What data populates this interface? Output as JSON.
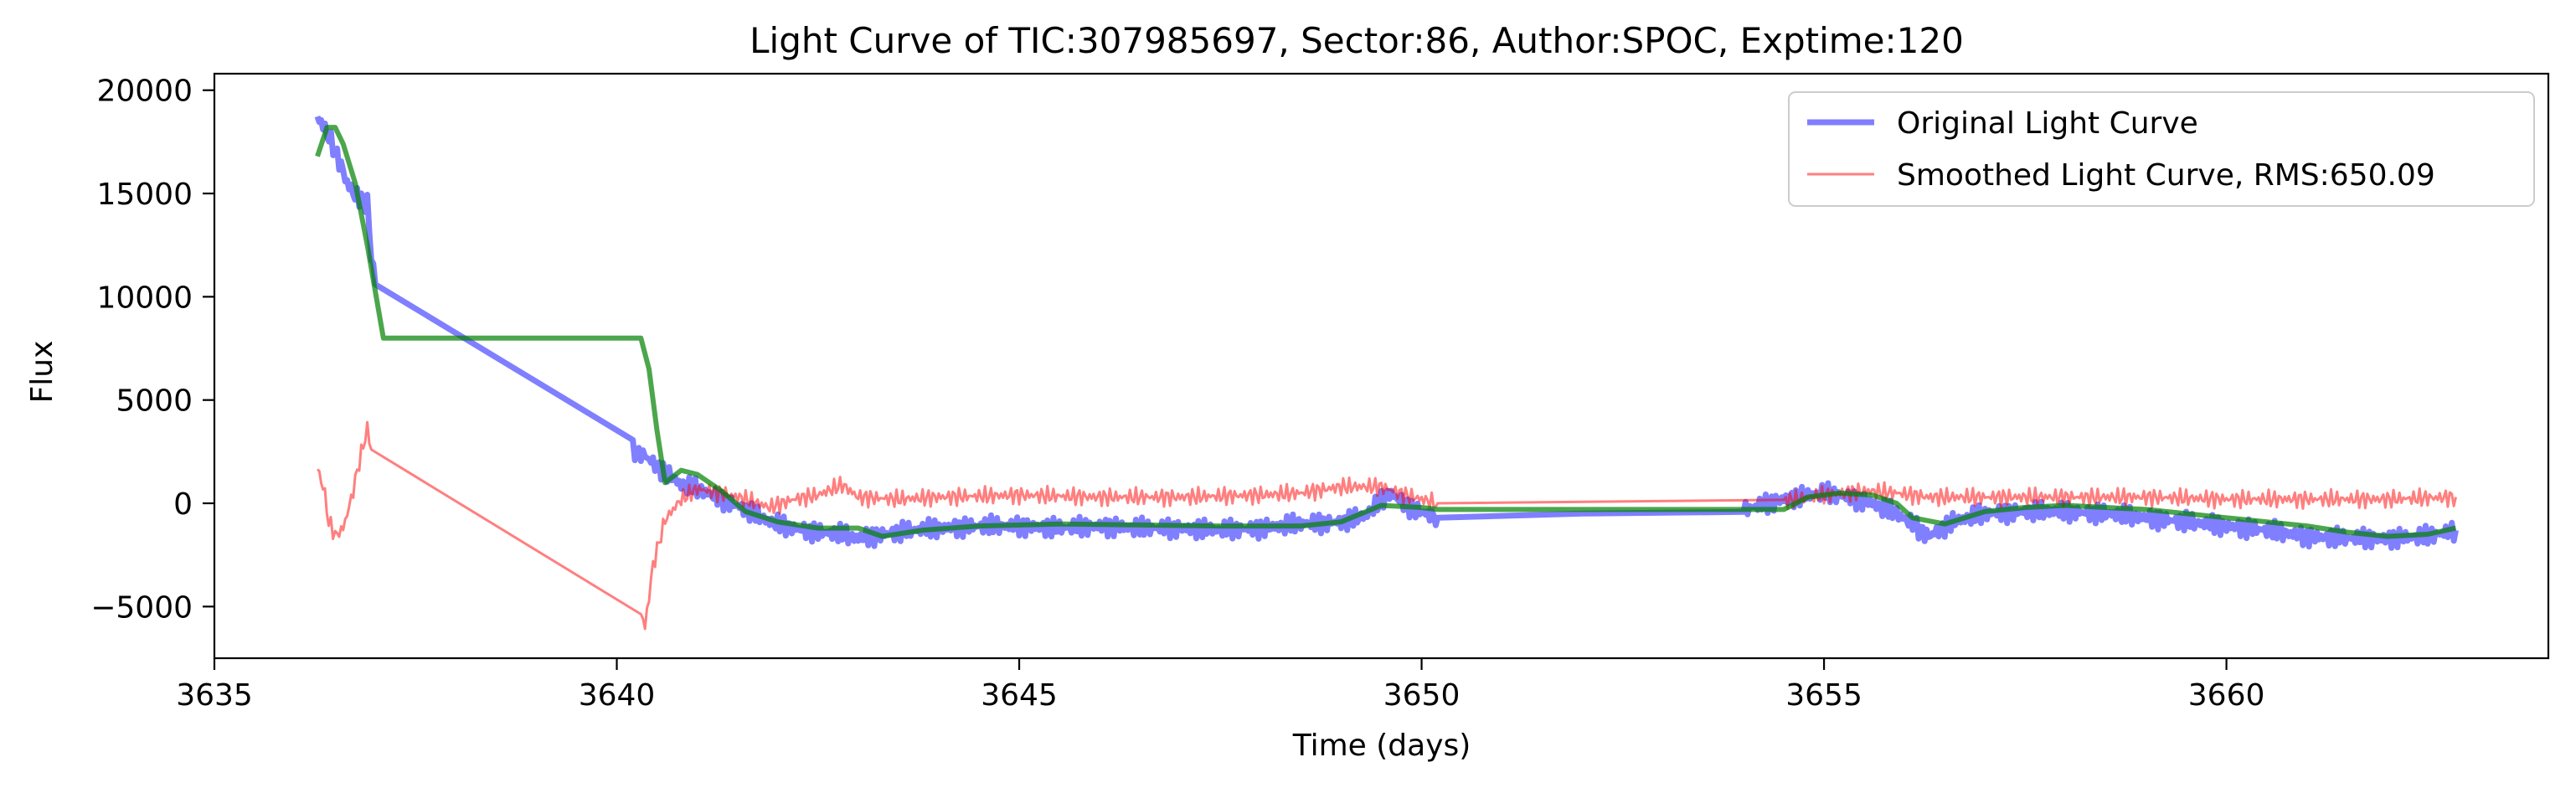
{
  "chart_data": {
    "type": "line",
    "title": "Light Curve of TIC:307985697, Sector:86, Author:SPOC, Exptime:120",
    "xlabel": "Time (days)",
    "ylabel": "Flux",
    "xlim": [
      3635,
      3664
    ],
    "ylim": [
      -7500,
      20800
    ],
    "xticks": [
      3635,
      3640,
      3645,
      3650,
      3655,
      3660
    ],
    "xtick_labels": [
      "3635",
      "3640",
      "3645",
      "3650",
      "3655",
      "3660"
    ],
    "yticks": [
      -5000,
      0,
      5000,
      10000,
      15000,
      20000
    ],
    "ytick_labels": [
      "−5000",
      "0",
      "5000",
      "10000",
      "15000",
      "20000"
    ],
    "grid": false,
    "legend_position": "top-right",
    "series": [
      {
        "name": "Original Light Curve",
        "color": "#0000ff",
        "opacity": 0.5,
        "x": [
          3636.28,
          3636.35,
          3636.45,
          3636.55,
          3636.65,
          3636.72,
          3636.8,
          3636.9,
          3636.95,
          3637.0,
          3640.2,
          3640.35,
          3640.5,
          3640.8,
          3641.0,
          3641.3,
          3641.6,
          3641.9,
          3642.2,
          3642.5,
          3642.8,
          3643.0,
          3643.3,
          3643.7,
          3644.0,
          3644.5,
          3645.0,
          3645.5,
          3646.0,
          3646.5,
          3647.0,
          3647.5,
          3648.0,
          3648.5,
          3649.0,
          3649.3,
          3649.6,
          3649.9,
          3650.2,
          3652.0,
          3654.0,
          3654.5,
          3655.0,
          3655.3,
          3655.6,
          3655.9,
          3656.1,
          3656.3,
          3656.6,
          3657.0,
          3657.5,
          3658.0,
          3658.5,
          3659.0,
          3659.5,
          3660.0,
          3660.5,
          3661.0,
          3661.5,
          3662.0,
          3662.5,
          3662.85
        ],
        "y": [
          18800,
          18300,
          17500,
          16600,
          15500,
          15000,
          14800,
          14500,
          12000,
          10600,
          2600,
          2300,
          1800,
          900,
          700,
          200,
          -300,
          -900,
          -1200,
          -1400,
          -1500,
          -1700,
          -1500,
          -1300,
          -1200,
          -1100,
          -1100,
          -1200,
          -1100,
          -1200,
          -1200,
          -1300,
          -1200,
          -1000,
          -900,
          -600,
          500,
          -300,
          -700,
          -500,
          -300,
          200,
          500,
          300,
          0,
          -500,
          -1000,
          -1600,
          -900,
          -500,
          -400,
          -400,
          -500,
          -700,
          -900,
          -1100,
          -1300,
          -1600,
          -1700,
          -1700,
          -1600,
          -1300
        ]
      },
      {
        "name": "Smoothed Light Curve, RMS:650.09",
        "color": "#ff0000",
        "opacity": 0.5,
        "x": [
          3636.28,
          3636.35,
          3636.42,
          3636.5,
          3636.6,
          3636.7,
          3636.8,
          3636.9,
          3636.95,
          3640.3,
          3640.35,
          3640.45,
          3640.6,
          3640.8,
          3641.0,
          3641.3,
          3641.6,
          3641.9,
          3642.2,
          3642.5,
          3642.8,
          3643.0,
          3643.5,
          3644.0,
          3645.0,
          3646.0,
          3647.0,
          3648.0,
          3648.5,
          3649.0,
          3649.5,
          3649.8,
          3650.2,
          3654.5,
          3655.0,
          3655.5,
          3655.9,
          3656.3,
          3657.0,
          3658.0,
          3659.0,
          3660.0,
          3661.0,
          3662.0,
          3662.85
        ],
        "y": [
          1800,
          800,
          -800,
          -1600,
          -1200,
          200,
          2000,
          3600,
          2600,
          -5300,
          -6000,
          -3000,
          -800,
          200,
          700,
          500,
          200,
          -200,
          200,
          400,
          900,
          300,
          200,
          300,
          400,
          300,
          300,
          400,
          500,
          800,
          800,
          400,
          0,
          100,
          400,
          600,
          500,
          300,
          300,
          300,
          300,
          200,
          200,
          200,
          300
        ]
      },
      {
        "name": "",
        "color": "#008000",
        "opacity": 0.7,
        "x": [
          3636.28,
          3636.4,
          3636.5,
          3636.6,
          3636.75,
          3636.9,
          3637.1,
          3640.3,
          3640.4,
          3640.5,
          3640.6,
          3640.8,
          3641.0,
          3641.3,
          3641.6,
          3642.0,
          3642.5,
          3643.0,
          3643.3,
          3643.8,
          3644.5,
          3645.5,
          3646.5,
          3647.5,
          3648.5,
          3649.0,
          3649.5,
          3650.0,
          3650.2,
          3654.5,
          3654.8,
          3655.2,
          3655.6,
          3655.9,
          3656.1,
          3656.5,
          3657.0,
          3657.5,
          3658.0,
          3658.5,
          3659.0,
          3659.5,
          3660.0,
          3660.5,
          3661.0,
          3661.5,
          3662.0,
          3662.5,
          3662.85
        ],
        "y": [
          16800,
          18200,
          18200,
          17400,
          15500,
          12500,
          8000,
          8000,
          6500,
          3500,
          1000,
          1600,
          1400,
          600,
          -400,
          -900,
          -1200,
          -1200,
          -1600,
          -1300,
          -1100,
          -1000,
          -1050,
          -1100,
          -1100,
          -900,
          -100,
          -200,
          -300,
          -300,
          300,
          500,
          400,
          0,
          -700,
          -1000,
          -400,
          -200,
          -100,
          -200,
          -300,
          -500,
          -700,
          -900,
          -1100,
          -1400,
          -1600,
          -1500,
          -1200
        ]
      }
    ]
  }
}
